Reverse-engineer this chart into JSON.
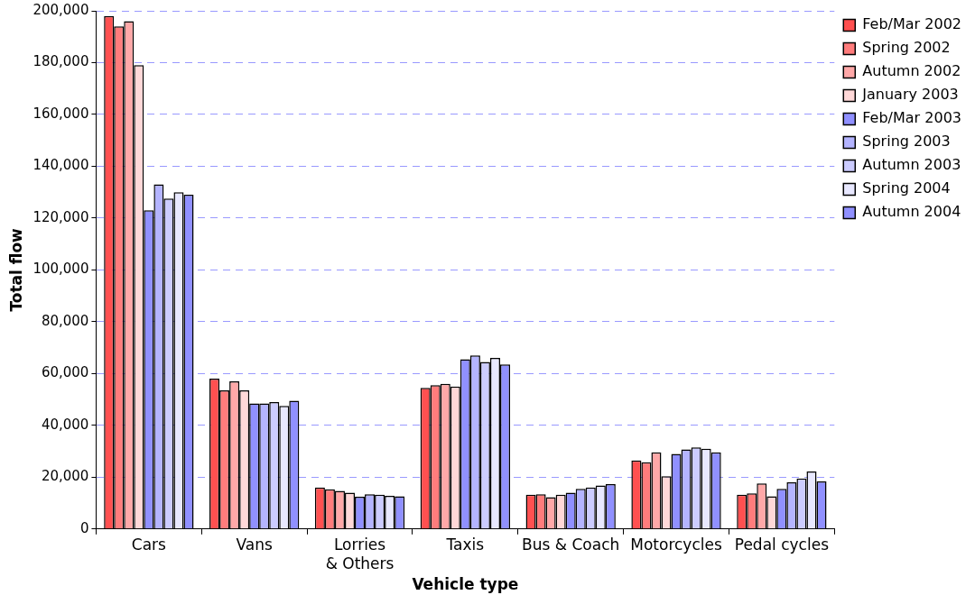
{
  "chart_data": {
    "type": "bar",
    "xlabel": "Vehicle type",
    "ylabel": "Total flow",
    "categories": [
      "Cars",
      "Vans",
      "Lorries & Others",
      "Taxis",
      "Bus & Coach",
      "Motorcycles",
      "Pedal cycles"
    ],
    "series": [
      {
        "name": "Feb/Mar 2002",
        "color": "#ff5050",
        "values": [
          198000,
          58000,
          16000,
          54500,
          13200,
          26500,
          13200
        ]
      },
      {
        "name": "Spring 2002",
        "color": "#ff7c7c",
        "values": [
          194000,
          53500,
          15300,
          55500,
          13400,
          25800,
          13800
        ]
      },
      {
        "name": "Autumn 2002",
        "color": "#ffa8a8",
        "values": [
          196000,
          57000,
          14700,
          56000,
          12300,
          29600,
          17600
        ]
      },
      {
        "name": "January 2003",
        "color": "#ffd8d8",
        "values": [
          179000,
          53500,
          14000,
          55000,
          13200,
          20400,
          12600
        ]
      },
      {
        "name": "Feb/Mar 2003",
        "color": "#9090ff",
        "values": [
          123000,
          48500,
          12500,
          65500,
          14000,
          29000,
          15500
        ]
      },
      {
        "name": "Spring 2003",
        "color": "#b4b4ff",
        "values": [
          133000,
          48500,
          13400,
          67000,
          15500,
          30700,
          18000
        ]
      },
      {
        "name": "Autumn 2003",
        "color": "#ccccff",
        "values": [
          127500,
          49000,
          13200,
          64500,
          16000,
          31500,
          19500
        ]
      },
      {
        "name": "Spring 2004",
        "color": "#e8e8ff",
        "values": [
          130000,
          47500,
          12800,
          66000,
          16800,
          31000,
          22200
        ]
      },
      {
        "name": "Autumn 2004",
        "color": "#9090ff",
        "values": [
          129000,
          49500,
          12600,
          63500,
          17300,
          29600,
          18400
        ]
      }
    ],
    "ylim": [
      0,
      200000
    ],
    "yticks": [
      0,
      {
        "value": 20000,
        "label": "20,000"
      },
      {
        "value": 40000,
        "label": "40,000"
      },
      {
        "value": 60000,
        "label": "60,000"
      },
      {
        "value": 80000,
        "label": "80,000"
      },
      {
        "value": 100000,
        "label": "100,000"
      },
      {
        "value": 120000,
        "label": "120,000"
      },
      {
        "value": 140000,
        "label": "140,000"
      },
      {
        "value": 160000,
        "label": "160,000"
      },
      {
        "value": 180000,
        "label": "180,000"
      },
      {
        "value": 200000,
        "label": "200,000"
      }
    ],
    "grid": "y",
    "legend": "right"
  }
}
